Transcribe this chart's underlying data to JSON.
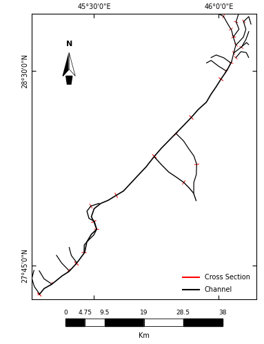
{
  "lon_min": 45.25,
  "lon_max": 46.15,
  "lat_min": 27.62,
  "lat_max": 28.72,
  "x_ticks": [
    45.5,
    46.0
  ],
  "x_labels": [
    "45°30'0\"E",
    "46°0'0\"E"
  ],
  "y_ticks": [
    27.75,
    28.5
  ],
  "y_labels": [
    "27°45'0\"N",
    "28°30'0\"N"
  ],
  "channel_color": "#000000",
  "cross_color": "#ff0000",
  "legend_cross": "Cross Section",
  "legend_channel": "Channel",
  "scale_values": [
    0,
    4.75,
    9.5,
    19,
    28.5,
    38
  ],
  "scale_unit": "Km",
  "background_color": "#ffffff",
  "border_color": "#000000"
}
